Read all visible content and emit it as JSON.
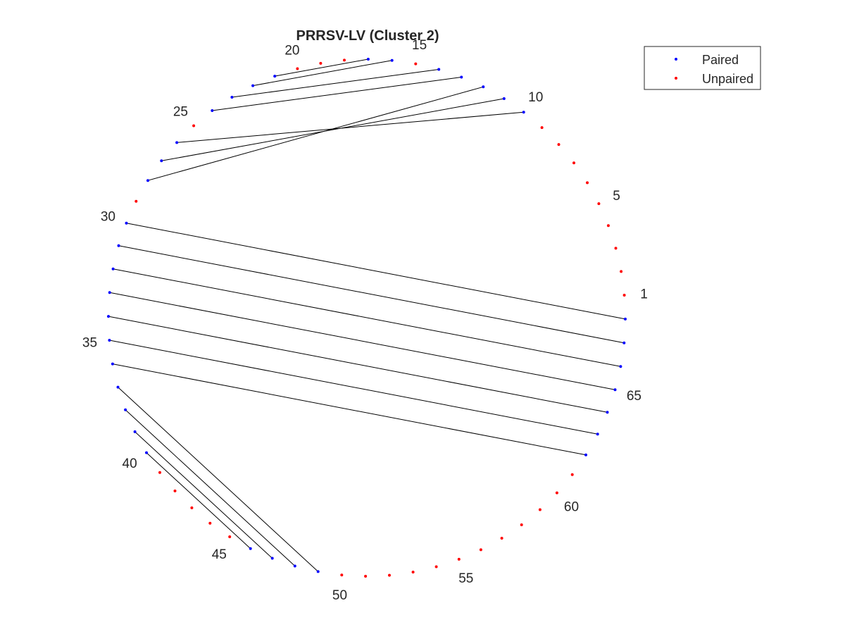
{
  "chart_data": {
    "type": "scatter",
    "title": "PRRSV-LV (Cluster 2)",
    "n_nucleotides": 68,
    "position_labels": [
      "1",
      "5",
      "10",
      "15",
      "20",
      "25",
      "30",
      "35",
      "40",
      "45",
      "50",
      "55",
      "60",
      "65"
    ],
    "label_positions": [
      1,
      5,
      10,
      15,
      20,
      25,
      30,
      35,
      40,
      45,
      50,
      55,
      60,
      65
    ],
    "pairs": [
      [
        10,
        26
      ],
      [
        11,
        27
      ],
      [
        12,
        28
      ],
      [
        13,
        24
      ],
      [
        14,
        23
      ],
      [
        16,
        22
      ],
      [
        17,
        21
      ],
      [
        30,
        68
      ],
      [
        31,
        67
      ],
      [
        32,
        66
      ],
      [
        33,
        65
      ],
      [
        34,
        64
      ],
      [
        35,
        63
      ],
      [
        36,
        62
      ],
      [
        37,
        49
      ],
      [
        38,
        48
      ],
      [
        39,
        47
      ],
      [
        40,
        46
      ]
    ],
    "series": [
      {
        "name": "Paired",
        "color": "#0000ff"
      },
      {
        "name": "Unpaired",
        "color": "#ff0000"
      }
    ],
    "legend_position": "top-right",
    "pair_line_color": "#000000"
  }
}
